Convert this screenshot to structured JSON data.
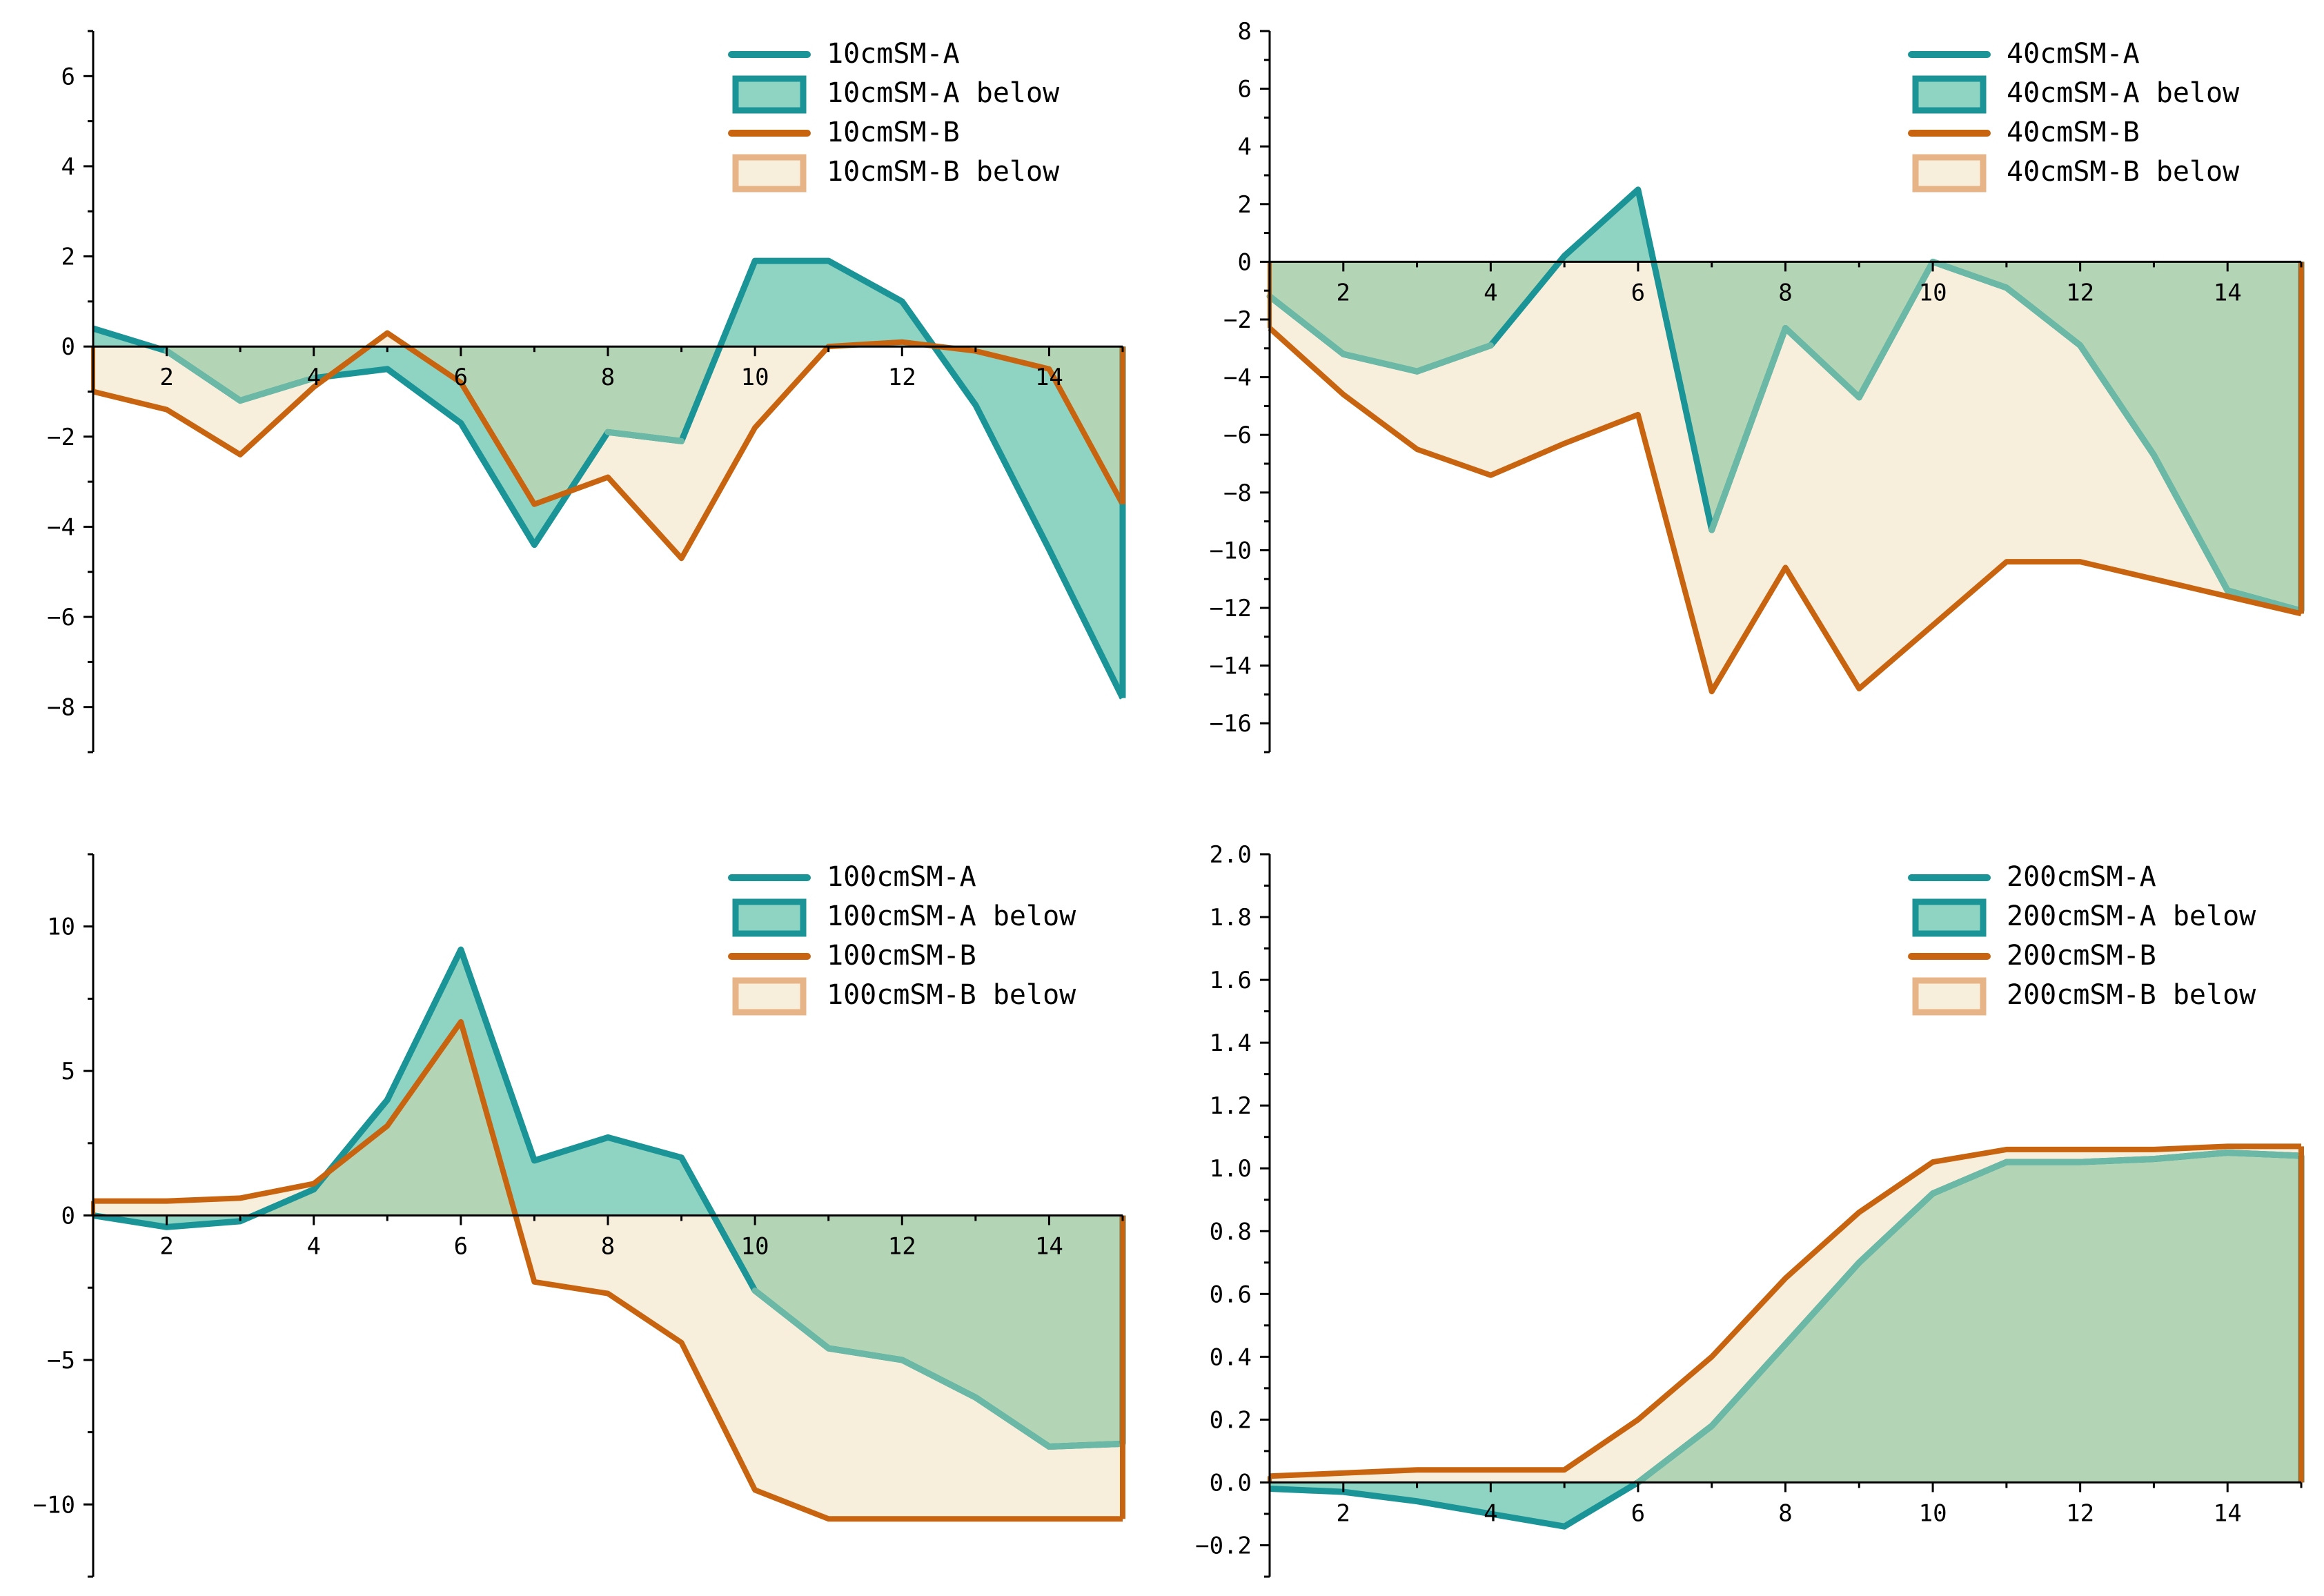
{
  "colors": {
    "a_line": "#1A9496",
    "a_fill": "#8FD3C2",
    "b_line": "#C8640F",
    "b_fill": "#F8EEDC",
    "overlap_fill": "#B4D5B5",
    "b_legend_border": "#E7B488"
  },
  "chart_data": [
    {
      "type": "area",
      "title": "",
      "x": [
        1,
        2,
        3,
        4,
        5,
        6,
        7,
        8,
        9,
        10,
        11,
        12,
        13,
        14,
        15
      ],
      "xticks": [
        2,
        4,
        6,
        8,
        10,
        12,
        14
      ],
      "xlim": [
        1,
        15
      ],
      "ylim": [
        -9,
        7
      ],
      "yticks": [
        -8,
        -6,
        -4,
        -2,
        0,
        2,
        4,
        6
      ],
      "ytick_labels": [
        "−8",
        "−6",
        "−4",
        "−2",
        "0",
        "2",
        "4",
        "6"
      ],
      "series": [
        {
          "name": "10cmSM-A",
          "values": [
            0.4,
            -0.1,
            -1.2,
            -0.7,
            -0.5,
            -1.7,
            -4.4,
            -1.9,
            -2.1,
            1.9,
            1.9,
            1.0,
            -1.3,
            -4.5,
            -7.8
          ]
        },
        {
          "name": "10cmSM-B",
          "values": [
            -1.0,
            -1.4,
            -2.4,
            -0.9,
            0.3,
            -0.8,
            -3.5,
            -2.9,
            -4.7,
            -1.8,
            0.0,
            0.1,
            -0.1,
            -0.5,
            -3.5
          ]
        }
      ],
      "legend": [
        "10cmSM-A",
        "10cmSM-A below",
        "10cmSM-B",
        "10cmSM-B below"
      ],
      "legend_position": "top-right"
    },
    {
      "type": "area",
      "title": "",
      "x": [
        1,
        2,
        3,
        4,
        5,
        6,
        7,
        8,
        9,
        10,
        11,
        12,
        13,
        14,
        15
      ],
      "xticks": [
        2,
        4,
        6,
        8,
        10,
        12,
        14
      ],
      "xlim": [
        1,
        15
      ],
      "ylim": [
        -17,
        8
      ],
      "yticks": [
        -16,
        -14,
        -12,
        -10,
        -8,
        -6,
        -4,
        -2,
        0,
        2,
        4,
        6,
        8
      ],
      "ytick_labels": [
        "−16",
        "−14",
        "−12",
        "−10",
        "−8",
        "−6",
        "−4",
        "−2",
        "0",
        "2",
        "4",
        "6",
        "8"
      ],
      "series": [
        {
          "name": "40cmSM-A",
          "values": [
            -1.2,
            -3.2,
            -3.8,
            -2.9,
            0.2,
            2.5,
            -9.3,
            -2.3,
            -4.7,
            0.0,
            -0.9,
            -2.9,
            -6.7,
            -11.4,
            -12.1
          ]
        },
        {
          "name": "40cmSM-B",
          "values": [
            -2.3,
            -4.6,
            -6.5,
            -7.4,
            -6.3,
            -5.3,
            -14.9,
            -10.6,
            -14.8,
            -12.6,
            -10.4,
            -10.4,
            -11.0,
            -11.6,
            -12.2
          ]
        }
      ],
      "legend": [
        "40cmSM-A",
        "40cmSM-A below",
        "40cmSM-B",
        "40cmSM-B below"
      ],
      "legend_position": "top-right"
    },
    {
      "type": "area",
      "title": "",
      "x": [
        1,
        2,
        3,
        4,
        5,
        6,
        7,
        8,
        9,
        10,
        11,
        12,
        13,
        14,
        15
      ],
      "xticks": [
        2,
        4,
        6,
        8,
        10,
        12,
        14
      ],
      "xlim": [
        1,
        15
      ],
      "ylim": [
        -12.5,
        12.5
      ],
      "yticks": [
        -10,
        -5,
        0,
        5,
        10
      ],
      "ytick_labels": [
        "−10",
        "−5",
        "0",
        "5",
        "10"
      ],
      "series": [
        {
          "name": "100cmSM-A",
          "values": [
            0.0,
            -0.4,
            -0.2,
            0.9,
            4.0,
            9.2,
            1.9,
            2.7,
            2.0,
            -2.6,
            -4.6,
            -5.0,
            -6.3,
            -8.0,
            -7.9
          ]
        },
        {
          "name": "100cmSM-B",
          "values": [
            0.5,
            0.5,
            0.6,
            1.1,
            3.1,
            6.7,
            -2.3,
            -2.7,
            -4.4,
            -9.5,
            -10.5,
            -10.5,
            -10.5,
            -10.5,
            -10.5
          ]
        }
      ],
      "legend": [
        "100cmSM-A",
        "100cmSM-A below",
        "100cmSM-B",
        "100cmSM-B below"
      ],
      "legend_position": "top-right"
    },
    {
      "type": "area",
      "title": "",
      "x": [
        1,
        2,
        3,
        4,
        5,
        6,
        7,
        8,
        9,
        10,
        11,
        12,
        13,
        14,
        15
      ],
      "xticks": [
        2,
        4,
        6,
        8,
        10,
        12,
        14
      ],
      "xlim": [
        1,
        15
      ],
      "ylim": [
        -0.3,
        2.0
      ],
      "yticks": [
        -0.2,
        0.0,
        0.2,
        0.4,
        0.6,
        0.8,
        1.0,
        1.2,
        1.4,
        1.6,
        1.8,
        2.0
      ],
      "ytick_labels": [
        "−0.2",
        "0.0",
        "0.2",
        "0.4",
        "0.6",
        "0.8",
        "1.0",
        "1.2",
        "1.4",
        "1.6",
        "1.8",
        "2.0"
      ],
      "series": [
        {
          "name": "200cmSM-A",
          "values": [
            -0.02,
            -0.03,
            -0.06,
            -0.1,
            -0.14,
            0.0,
            0.18,
            0.44,
            0.7,
            0.92,
            1.02,
            1.02,
            1.03,
            1.05,
            1.04
          ]
        },
        {
          "name": "200cmSM-B",
          "values": [
            0.02,
            0.03,
            0.04,
            0.04,
            0.04,
            0.2,
            0.4,
            0.65,
            0.86,
            1.02,
            1.06,
            1.06,
            1.06,
            1.07,
            1.07
          ]
        }
      ],
      "legend": [
        "200cmSM-A",
        "200cmSM-A below",
        "200cmSM-B",
        "200cmSM-B below"
      ],
      "legend_position": "top-right"
    }
  ]
}
